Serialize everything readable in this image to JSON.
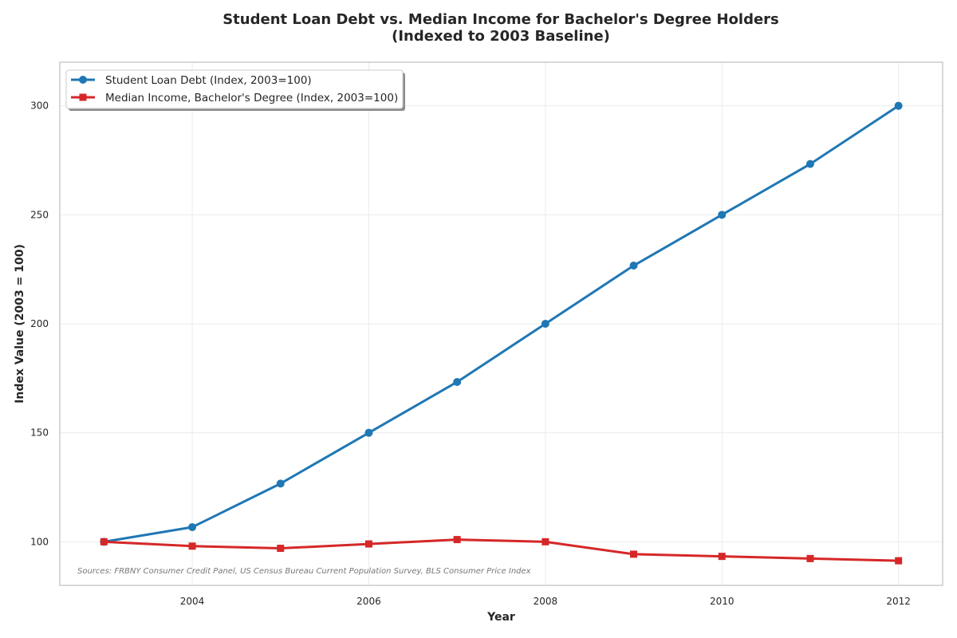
{
  "chart_data": {
    "type": "line",
    "title_lines": [
      "Student Loan Debt vs. Median Income for Bachelor's Degree Holders",
      "(Indexed to 2003 Baseline)"
    ],
    "xlabel": "Year",
    "ylabel": "Index Value (2003 = 100)",
    "x": [
      2003,
      2004,
      2005,
      2006,
      2007,
      2008,
      2009,
      2010,
      2011,
      2012
    ],
    "xticks": [
      2004,
      2006,
      2008,
      2010,
      2012
    ],
    "yticks": [
      100,
      150,
      200,
      250,
      300
    ],
    "xlim": [
      2002.5,
      2012.5
    ],
    "ylim": [
      80,
      320
    ],
    "grid": true,
    "legend_position": "top-left",
    "series": [
      {
        "name": "Student Loan Debt (Index, 2003=100)",
        "color": "#1f77b4",
        "marker": "circle",
        "values": [
          100,
          106.7,
          126.7,
          150,
          173.3,
          200,
          226.7,
          250,
          273.3,
          300
        ]
      },
      {
        "name": "Median Income, Bachelor's Degree (Index, 2003=100)",
        "color": "#d62728",
        "marker": "square",
        "values": [
          100,
          98,
          97,
          99,
          101,
          100,
          94.3,
          93.3,
          92.3,
          91.3
        ]
      }
    ],
    "source_note": "Sources: FRBNY Consumer Credit Panel, US Census Bureau Current Population Survey, BLS Consumer Price Index"
  }
}
